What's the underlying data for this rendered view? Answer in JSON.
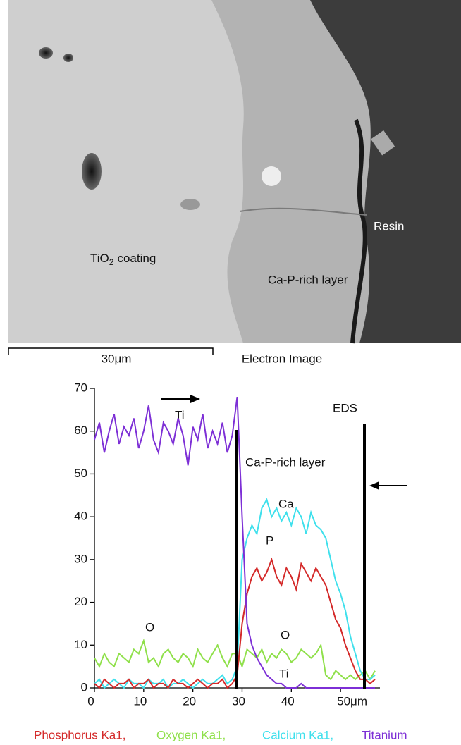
{
  "image": {
    "coating_label": [
      "TiO",
      "2",
      "coating"
    ],
    "layer_label": "Ca-P-rich layer",
    "resin_label": "Resin",
    "scale_bar": "30μm",
    "caption": "Electron Image"
  },
  "chart_data": {
    "type": "line",
    "annotations": [
      "Ti",
      "EDS",
      "Ca-P-rich layer",
      "Ca",
      "P",
      "O",
      "O",
      "Ti"
    ],
    "x": [
      0,
      1,
      2,
      3,
      4,
      5,
      6,
      7,
      8,
      9,
      10,
      11,
      12,
      13,
      14,
      15,
      16,
      17,
      18,
      19,
      20,
      21,
      22,
      23,
      24,
      25,
      26,
      27,
      28,
      29,
      30,
      31,
      32,
      33,
      34,
      35,
      36,
      37,
      38,
      39,
      40,
      41,
      42,
      43,
      44,
      45,
      46,
      47,
      48,
      49,
      50,
      51,
      52,
      53,
      54,
      55,
      56,
      57
    ],
    "series": [
      {
        "name": "Phosphorus Ka1,",
        "color": "#d42a2a",
        "values": [
          1,
          0,
          2,
          1,
          0,
          1,
          1,
          2,
          0,
          1,
          1,
          2,
          0,
          1,
          1,
          0,
          2,
          1,
          1,
          0,
          1,
          2,
          1,
          0,
          1,
          1,
          2,
          0,
          1,
          3,
          15,
          22,
          26,
          28,
          25,
          27,
          30,
          26,
          24,
          28,
          26,
          23,
          29,
          27,
          25,
          28,
          26,
          24,
          20,
          16,
          14,
          10,
          7,
          4,
          2,
          2,
          1,
          2
        ]
      },
      {
        "name": "Oxygen Ka1,",
        "color": "#8fe04a",
        "values": [
          7,
          5,
          8,
          6,
          5,
          8,
          7,
          6,
          9,
          8,
          11,
          6,
          7,
          5,
          8,
          9,
          7,
          6,
          8,
          7,
          5,
          9,
          7,
          6,
          8,
          10,
          7,
          5,
          8,
          8,
          5,
          9,
          8,
          7,
          9,
          6,
          8,
          7,
          9,
          8,
          6,
          7,
          9,
          8,
          7,
          8,
          10,
          3,
          2,
          4,
          3,
          2,
          3,
          2,
          3,
          4,
          2,
          4
        ]
      },
      {
        "name": "Calcium Ka1,",
        "color": "#3fe0ec",
        "values": [
          1,
          2,
          0,
          1,
          2,
          1,
          0,
          2,
          1,
          1,
          0,
          2,
          1,
          1,
          2,
          0,
          1,
          1,
          2,
          1,
          0,
          1,
          2,
          1,
          1,
          2,
          3,
          1,
          2,
          5,
          30,
          35,
          38,
          36,
          42,
          44,
          40,
          42,
          39,
          41,
          38,
          42,
          40,
          36,
          41,
          38,
          37,
          35,
          30,
          25,
          22,
          18,
          12,
          8,
          4,
          2,
          2,
          3
        ]
      },
      {
        "name": "Titanium",
        "color": "#7d2fd6",
        "values": [
          58,
          62,
          55,
          60,
          64,
          57,
          61,
          59,
          63,
          56,
          60,
          66,
          58,
          55,
          62,
          60,
          57,
          63,
          59,
          52,
          61,
          58,
          64,
          56,
          60,
          57,
          62,
          55,
          59,
          68,
          40,
          15,
          10,
          7,
          5,
          3,
          2,
          1,
          1,
          0,
          0,
          0,
          1,
          0,
          0,
          0,
          0,
          0,
          0,
          0,
          0,
          0,
          0,
          0,
          0,
          0,
          0,
          0
        ]
      }
    ],
    "xlim": [
      0,
      58
    ],
    "ylim": [
      0,
      70
    ],
    "xticks": [
      0,
      10,
      20,
      30,
      40,
      {
        "value": 50,
        "label": "50μm"
      }
    ],
    "yticks": [
      0,
      10,
      20,
      30,
      40,
      50,
      60,
      70
    ]
  }
}
